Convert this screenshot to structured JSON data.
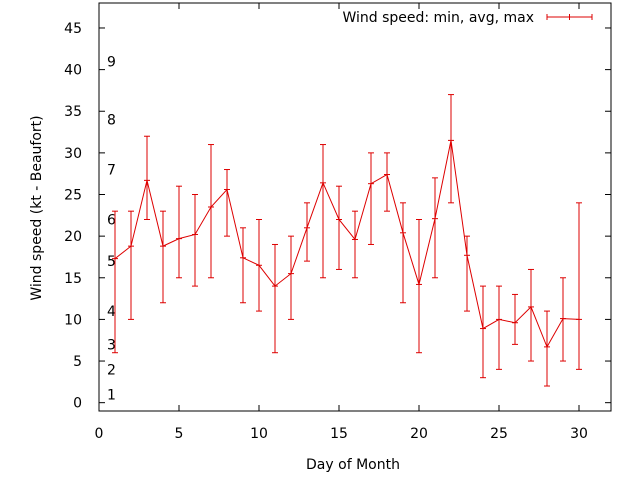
{
  "chart_data": {
    "type": "line",
    "xlabel": "Day of Month",
    "ylabel": "Wind speed (kt - Beaufort)",
    "xlim": [
      0,
      32
    ],
    "ylim": [
      -1,
      48
    ],
    "x_ticks": [
      0,
      5,
      10,
      15,
      20,
      25,
      30
    ],
    "y_ticks": [
      0,
      5,
      10,
      15,
      20,
      25,
      30,
      35,
      40,
      45
    ],
    "grid": false,
    "legend_position": "top-right",
    "beaufort_labels": [
      {
        "label": "1",
        "y": 1
      },
      {
        "label": "2",
        "y": 4
      },
      {
        "label": "3",
        "y": 7
      },
      {
        "label": "4",
        "y": 11
      },
      {
        "label": "5",
        "y": 17
      },
      {
        "label": "6",
        "y": 22
      },
      {
        "label": "7",
        "y": 28
      },
      {
        "label": "8",
        "y": 34
      },
      {
        "label": "9",
        "y": 41
      }
    ],
    "series": [
      {
        "name": "Wind speed: min, avg, max",
        "color": "#dd0000",
        "points": [
          {
            "x": 1,
            "min": 6,
            "avg": 17.3,
            "max": 23
          },
          {
            "x": 2,
            "min": 10,
            "avg": 18.8,
            "max": 23
          },
          {
            "x": 3,
            "min": 22,
            "avg": 26.7,
            "max": 32
          },
          {
            "x": 4,
            "min": 12,
            "avg": 18.8,
            "max": 23
          },
          {
            "x": 5,
            "min": 15,
            "avg": 19.7,
            "max": 26
          },
          {
            "x": 6,
            "min": 14,
            "avg": 20.2,
            "max": 25
          },
          {
            "x": 7,
            "min": 15,
            "avg": 23.5,
            "max": 31
          },
          {
            "x": 8,
            "min": 20,
            "avg": 25.6,
            "max": 28
          },
          {
            "x": 9,
            "min": 12,
            "avg": 17.4,
            "max": 21
          },
          {
            "x": 10,
            "min": 11,
            "avg": 16.5,
            "max": 22
          },
          {
            "x": 11,
            "min": 6,
            "avg": 14.0,
            "max": 19
          },
          {
            "x": 12,
            "min": 10,
            "avg": 15.5,
            "max": 20
          },
          {
            "x": 13,
            "min": 17,
            "avg": 21.0,
            "max": 24
          },
          {
            "x": 14,
            "min": 15,
            "avg": 26.4,
            "max": 31
          },
          {
            "x": 15,
            "min": 16,
            "avg": 22.0,
            "max": 26
          },
          {
            "x": 16,
            "min": 15,
            "avg": 19.6,
            "max": 23
          },
          {
            "x": 17,
            "min": 19,
            "avg": 26.3,
            "max": 30
          },
          {
            "x": 18,
            "min": 23,
            "avg": 27.4,
            "max": 30
          },
          {
            "x": 19,
            "min": 12,
            "avg": 20.4,
            "max": 24
          },
          {
            "x": 20,
            "min": 6,
            "avg": 14.2,
            "max": 22
          },
          {
            "x": 21,
            "min": 15,
            "avg": 22.1,
            "max": 27
          },
          {
            "x": 22,
            "min": 24,
            "avg": 31.5,
            "max": 37
          },
          {
            "x": 23,
            "min": 11,
            "avg": 17.7,
            "max": 20
          },
          {
            "x": 24,
            "min": 3,
            "avg": 8.9,
            "max": 14
          },
          {
            "x": 25,
            "min": 4,
            "avg": 10.0,
            "max": 14
          },
          {
            "x": 26,
            "min": 7,
            "avg": 9.6,
            "max": 13
          },
          {
            "x": 27,
            "min": 5,
            "avg": 11.5,
            "max": 16
          },
          {
            "x": 28,
            "min": 2,
            "avg": 6.7,
            "max": 11
          },
          {
            "x": 29,
            "min": 5,
            "avg": 10.1,
            "max": 15
          },
          {
            "x": 30,
            "min": 4,
            "avg": 10.0,
            "max": 24
          }
        ]
      }
    ]
  }
}
